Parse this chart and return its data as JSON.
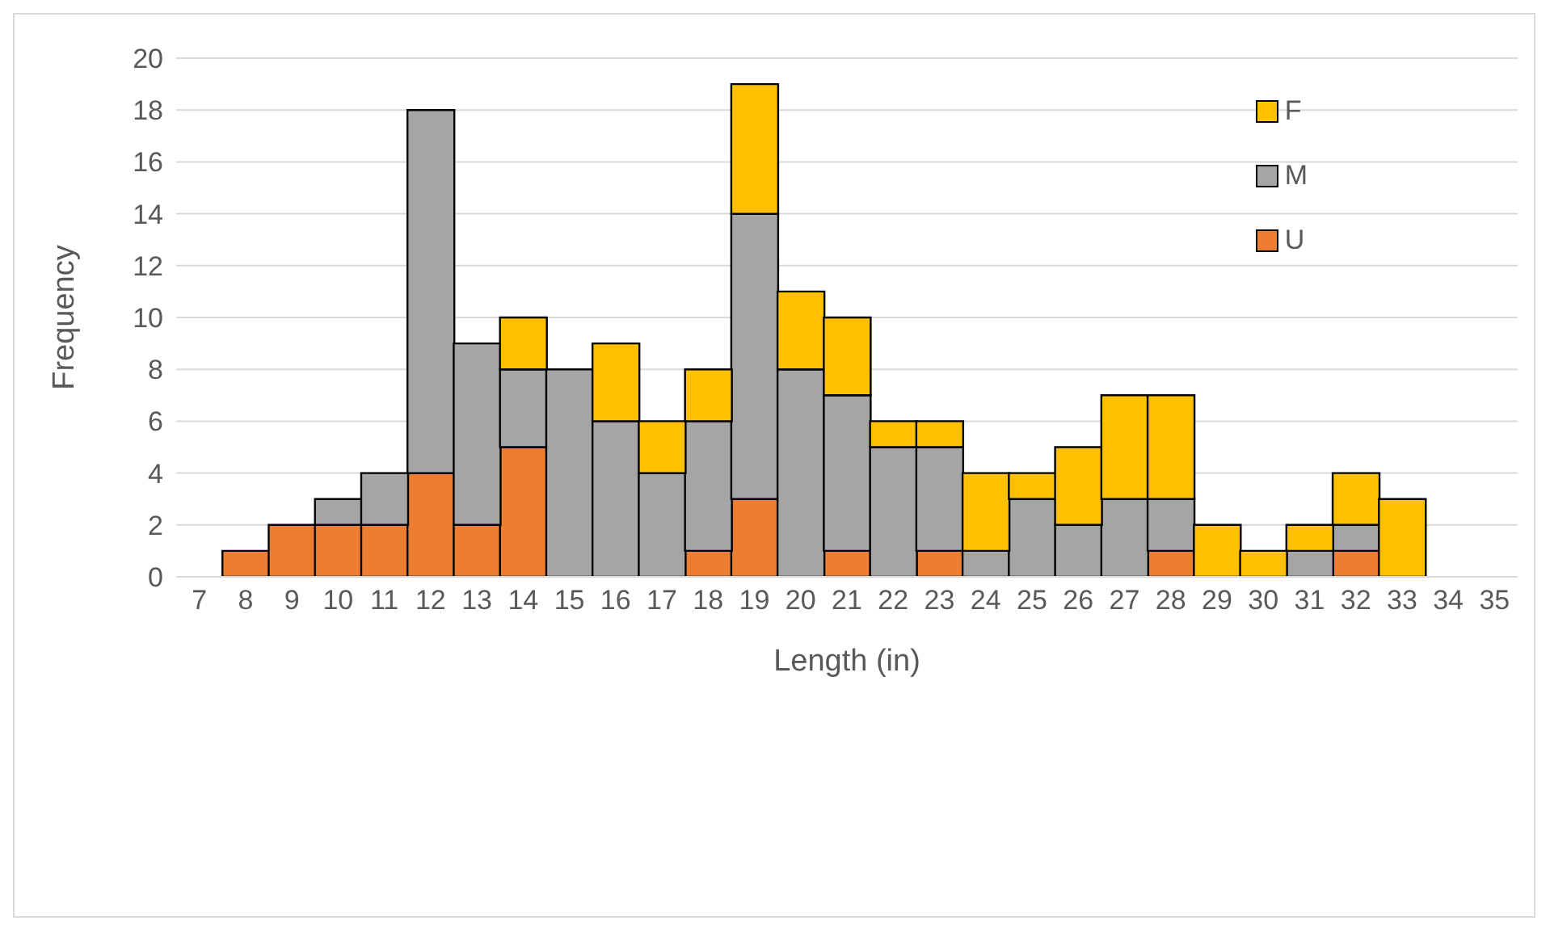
{
  "chart_data": {
    "type": "bar",
    "stacked": true,
    "xlabel": "Length (in)",
    "ylabel": "Frequency",
    "categories": [
      "7",
      "8",
      "9",
      "10",
      "11",
      "12",
      "13",
      "14",
      "15",
      "16",
      "17",
      "18",
      "19",
      "20",
      "21",
      "22",
      "23",
      "24",
      "25",
      "26",
      "27",
      "28",
      "29",
      "30",
      "31",
      "32",
      "33",
      "34",
      "35"
    ],
    "series": [
      {
        "name": "U",
        "color": "#ed7d31",
        "values": [
          null,
          1,
          2,
          2,
          2,
          4,
          2,
          5,
          null,
          null,
          null,
          1,
          3,
          null,
          1,
          null,
          1,
          null,
          null,
          null,
          null,
          1,
          null,
          null,
          null,
          1,
          null,
          null,
          null
        ]
      },
      {
        "name": "M",
        "color": "#a5a5a5",
        "values": [
          null,
          null,
          null,
          1,
          2,
          14,
          7,
          3,
          8,
          6,
          4,
          5,
          11,
          8,
          6,
          5,
          4,
          1,
          3,
          2,
          3,
          2,
          null,
          null,
          1,
          1,
          null,
          null,
          null
        ]
      },
      {
        "name": "F",
        "color": "#ffc000",
        "values": [
          null,
          null,
          null,
          null,
          null,
          null,
          null,
          2,
          null,
          3,
          2,
          2,
          5,
          3,
          3,
          1,
          1,
          3,
          1,
          3,
          4,
          4,
          2,
          1,
          1,
          2,
          3,
          null,
          null
        ]
      }
    ],
    "ylim": [
      0,
      20
    ],
    "yticks": [
      0,
      2,
      4,
      6,
      8,
      10,
      12,
      14,
      16,
      18,
      20
    ],
    "grid": "y",
    "legend": "top right"
  }
}
